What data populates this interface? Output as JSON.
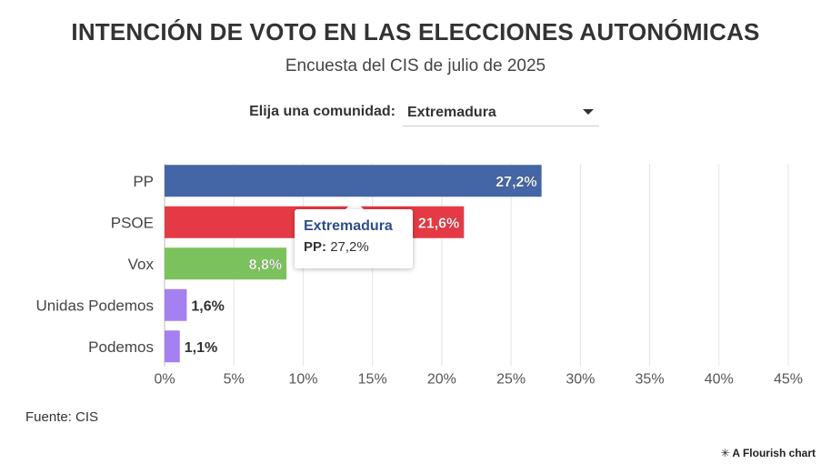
{
  "header": {
    "title": "INTENCIÓN DE VOTO EN LAS ELECCIONES AUTONÓMICAS",
    "subtitle": "Encuesta del CIS de julio de 2025"
  },
  "selector": {
    "label": "Elija una comunidad:",
    "value": "Extremadura"
  },
  "tooltip": {
    "title": "Extremadura",
    "series_label": "PP:",
    "value": "27,2%"
  },
  "footer": {
    "source": "Fuente: CIS",
    "credit": "A Flourish chart",
    "credit_icon": "asterisk-icon"
  },
  "chart_data": {
    "type": "bar",
    "orientation": "horizontal",
    "title": "INTENCIÓN DE VOTO EN LAS ELECCIONES AUTONÓMICAS",
    "subtitle": "Encuesta del CIS de julio de 2025",
    "categories": [
      "PP",
      "PSOE",
      "Vox",
      "Unidas Podemos",
      "Podemos"
    ],
    "values": [
      27.2,
      21.6,
      8.8,
      1.6,
      1.1
    ],
    "labels": [
      "27,2%",
      "21,6%",
      "8,8%",
      "1,6%",
      "1,1%"
    ],
    "colors": [
      "#4466a6",
      "#e53a45",
      "#7cc25c",
      "#a480f0",
      "#a480f0"
    ],
    "xlim": [
      0,
      45
    ],
    "xticks": [
      0,
      5,
      10,
      15,
      20,
      25,
      30,
      35,
      40,
      45
    ],
    "xtick_labels": [
      "0%",
      "5%",
      "10%",
      "15%",
      "20%",
      "25%",
      "30%",
      "35%",
      "40%",
      "45%"
    ],
    "grid": true,
    "xlabel": "",
    "ylabel": ""
  }
}
